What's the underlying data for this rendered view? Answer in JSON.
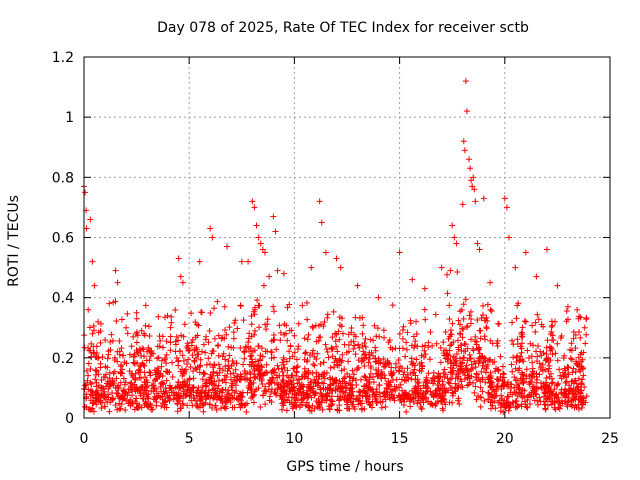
{
  "chart_data": {
    "type": "scatter",
    "title": "Day 078 of 2025, Rate Of TEC Index for receiver sctb",
    "xlabel": "GPS time / hours",
    "ylabel": "ROTI / TECUs",
    "xlim": [
      0,
      25
    ],
    "ylim": [
      0,
      1.2
    ],
    "x_ticks": [
      0,
      5,
      10,
      15,
      20,
      25
    ],
    "x_tick_labels": [
      "0",
      "5",
      "10",
      "15",
      "20",
      "25"
    ],
    "y_ticks": [
      0,
      0.2,
      0.4,
      0.6,
      0.8,
      1,
      1.2
    ],
    "y_tick_labels": [
      "0",
      "0.2",
      "0.4",
      "0.6",
      "0.8",
      "1",
      "1.2"
    ],
    "grid": true,
    "marker": "+",
    "colors": {
      "points": "#ff0000",
      "grid": "#a0a0a0",
      "axes": "#000000"
    },
    "data_coverage_hours": [
      0,
      23.9
    ],
    "series": [
      {
        "name": "ROTI",
        "points": [
          [
            0.0,
            0.77
          ],
          [
            0.05,
            0.75
          ],
          [
            0.1,
            0.69
          ],
          [
            0.12,
            0.63
          ],
          [
            0.3,
            0.66
          ],
          [
            0.4,
            0.52
          ],
          [
            0.5,
            0.44
          ],
          [
            0.2,
            0.36
          ],
          [
            1.5,
            0.49
          ],
          [
            1.6,
            0.45
          ],
          [
            1.2,
            0.38
          ],
          [
            2.0,
            0.3
          ],
          [
            2.5,
            0.35
          ],
          [
            4.5,
            0.53
          ],
          [
            4.6,
            0.47
          ],
          [
            4.7,
            0.45
          ],
          [
            5.5,
            0.52
          ],
          [
            6.0,
            0.63
          ],
          [
            6.1,
            0.6
          ],
          [
            6.8,
            0.57
          ],
          [
            7.5,
            0.52
          ],
          [
            7.8,
            0.52
          ],
          [
            8.0,
            0.72
          ],
          [
            8.1,
            0.7
          ],
          [
            8.2,
            0.64
          ],
          [
            8.3,
            0.6
          ],
          [
            8.4,
            0.58
          ],
          [
            8.5,
            0.56
          ],
          [
            8.6,
            0.55
          ],
          [
            9.0,
            0.67
          ],
          [
            9.1,
            0.62
          ],
          [
            9.2,
            0.49
          ],
          [
            8.8,
            0.47
          ],
          [
            9.5,
            0.48
          ],
          [
            11.2,
            0.72
          ],
          [
            11.3,
            0.65
          ],
          [
            10.8,
            0.5
          ],
          [
            11.5,
            0.55
          ],
          [
            12.0,
            0.53
          ],
          [
            12.2,
            0.5
          ],
          [
            13.0,
            0.44
          ],
          [
            14.0,
            0.4
          ],
          [
            15.0,
            0.55
          ],
          [
            15.6,
            0.46
          ],
          [
            16.2,
            0.43
          ],
          [
            17.0,
            0.5
          ],
          [
            17.5,
            0.64
          ],
          [
            17.6,
            0.6
          ],
          [
            17.7,
            0.58
          ],
          [
            18.0,
            0.71
          ],
          [
            18.05,
            0.92
          ],
          [
            18.1,
            0.89
          ],
          [
            18.15,
            1.12
          ],
          [
            18.2,
            1.02
          ],
          [
            18.3,
            0.86
          ],
          [
            18.35,
            0.83
          ],
          [
            18.4,
            0.79
          ],
          [
            18.45,
            0.77
          ],
          [
            18.5,
            0.8
          ],
          [
            18.55,
            0.76
          ],
          [
            18.6,
            0.72
          ],
          [
            18.7,
            0.58
          ],
          [
            18.8,
            0.56
          ],
          [
            19.0,
            0.73
          ],
          [
            19.3,
            0.45
          ],
          [
            20.0,
            0.73
          ],
          [
            20.1,
            0.7
          ],
          [
            20.2,
            0.6
          ],
          [
            20.5,
            0.5
          ],
          [
            21.0,
            0.55
          ],
          [
            21.5,
            0.47
          ],
          [
            22.0,
            0.56
          ],
          [
            22.5,
            0.44
          ],
          [
            23.0,
            0.37
          ],
          [
            23.5,
            0.33
          ],
          [
            23.8,
            0.3
          ]
        ]
      }
    ],
    "bulk_band": {
      "typical_min": 0.02,
      "typical_max": 0.35,
      "gaps_hours": [
        [
          0.0,
          0.0
        ]
      ]
    }
  }
}
